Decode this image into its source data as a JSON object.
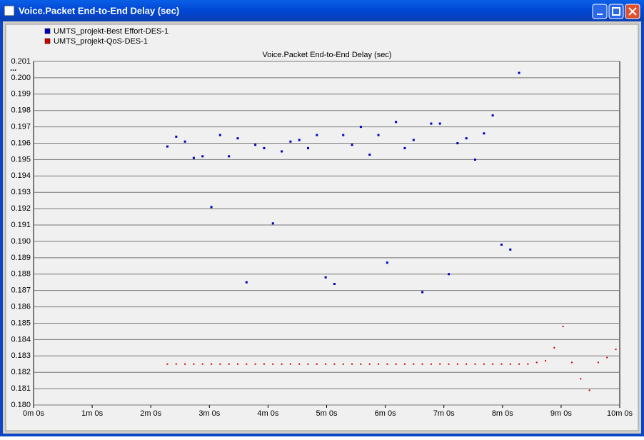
{
  "window": {
    "title": "Voice.Packet End-to-End Delay (sec)"
  },
  "chart_data": {
    "type": "scatter",
    "title": "Voice.Packet End-to-End Delay (sec)",
    "ylabel": "...",
    "xlim": [
      0,
      600
    ],
    "xticks": [
      {
        "value": 0,
        "label": "0m 0s"
      },
      {
        "value": 60,
        "label": "1m 0s"
      },
      {
        "value": 120,
        "label": "2m 0s"
      },
      {
        "value": 180,
        "label": "3m 0s"
      },
      {
        "value": 240,
        "label": "4m 0s"
      },
      {
        "value": 300,
        "label": "5m 0s"
      },
      {
        "value": 360,
        "label": "6m 0s"
      },
      {
        "value": 420,
        "label": "7m 0s"
      },
      {
        "value": 480,
        "label": "8m 0s"
      },
      {
        "value": 540,
        "label": "9m 0s"
      },
      {
        "value": 600,
        "label": "10m 0s"
      }
    ],
    "ylim": [
      0.18,
      0.201
    ],
    "yticks": [
      {
        "value": 0.18,
        "label": "0.180"
      },
      {
        "value": 0.181,
        "label": "0.181"
      },
      {
        "value": 0.182,
        "label": "0.182"
      },
      {
        "value": 0.183,
        "label": "0.183"
      },
      {
        "value": 0.184,
        "label": "0.184"
      },
      {
        "value": 0.185,
        "label": "0.185"
      },
      {
        "value": 0.186,
        "label": "0.186"
      },
      {
        "value": 0.187,
        "label": "0.187"
      },
      {
        "value": 0.188,
        "label": "0.188"
      },
      {
        "value": 0.189,
        "label": "0.189"
      },
      {
        "value": 0.19,
        "label": "0.190"
      },
      {
        "value": 0.191,
        "label": "0.191"
      },
      {
        "value": 0.192,
        "label": "0.192"
      },
      {
        "value": 0.193,
        "label": "0.193"
      },
      {
        "value": 0.194,
        "label": "0.194"
      },
      {
        "value": 0.195,
        "label": "0.195"
      },
      {
        "value": 0.196,
        "label": "0.196"
      },
      {
        "value": 0.197,
        "label": "0.197"
      },
      {
        "value": 0.198,
        "label": "0.198"
      },
      {
        "value": 0.199,
        "label": "0.199"
      },
      {
        "value": 0.2,
        "label": "0.200"
      },
      {
        "value": 0.201,
        "label": "0.201"
      }
    ],
    "grid": true,
    "legend": "top-left",
    "series": [
      {
        "name": "UMTS_projekt-Best Effort-DES-1",
        "color": "#0000c0",
        "x": [
          137,
          146,
          155,
          164,
          173,
          182,
          191,
          200,
          209,
          218,
          227,
          236,
          245,
          254,
          263,
          272,
          281,
          290,
          299,
          308,
          317,
          326,
          335,
          344,
          353,
          362,
          371,
          380,
          389,
          398,
          407,
          416,
          425,
          434,
          443,
          452,
          461,
          470,
          479,
          488,
          497
        ],
        "values": [
          0.1958,
          0.1964,
          0.1961,
          0.1951,
          0.1952,
          0.1921,
          0.1965,
          0.1952,
          0.1963,
          0.1875,
          0.1959,
          0.1957,
          0.1911,
          0.1955,
          0.1961,
          0.1962,
          0.1957,
          0.1965,
          0.1878,
          0.1874,
          0.1965,
          0.1959,
          0.197,
          0.1953,
          0.1965,
          0.1887,
          0.1973,
          0.1957,
          0.1962,
          0.1869,
          0.1972,
          0.1972,
          0.188,
          0.196,
          0.1963,
          0.195,
          0.1966,
          0.1977,
          0.1898,
          0.1895,
          0.2003
        ]
      },
      {
        "name": "UMTS_projekt-QoS-DES-1",
        "color": "#d00000",
        "x": [
          137,
          146,
          155,
          164,
          173,
          182,
          191,
          200,
          209,
          218,
          227,
          236,
          245,
          254,
          263,
          272,
          281,
          290,
          299,
          308,
          317,
          326,
          335,
          344,
          353,
          362,
          371,
          380,
          389,
          398,
          407,
          416,
          425,
          434,
          443,
          452,
          461,
          470,
          479,
          488,
          497,
          506,
          515,
          524,
          533,
          542,
          551,
          560,
          569,
          578,
          587,
          596
        ],
        "values": [
          0.1825,
          0.1825,
          0.1825,
          0.1825,
          0.1825,
          0.1825,
          0.1825,
          0.1825,
          0.1825,
          0.1825,
          0.1825,
          0.1825,
          0.1825,
          0.1825,
          0.1825,
          0.1825,
          0.1825,
          0.1825,
          0.1825,
          0.1825,
          0.1825,
          0.1825,
          0.1825,
          0.1825,
          0.1825,
          0.1825,
          0.1825,
          0.1825,
          0.1825,
          0.1825,
          0.1825,
          0.1825,
          0.1825,
          0.1825,
          0.1825,
          0.1825,
          0.1825,
          0.1825,
          0.1825,
          0.1825,
          0.1825,
          0.1825,
          0.1826,
          0.1827,
          0.1835,
          0.1848,
          0.1826,
          0.1816,
          0.1809,
          0.1826,
          0.1829,
          0.1834
        ]
      }
    ]
  }
}
